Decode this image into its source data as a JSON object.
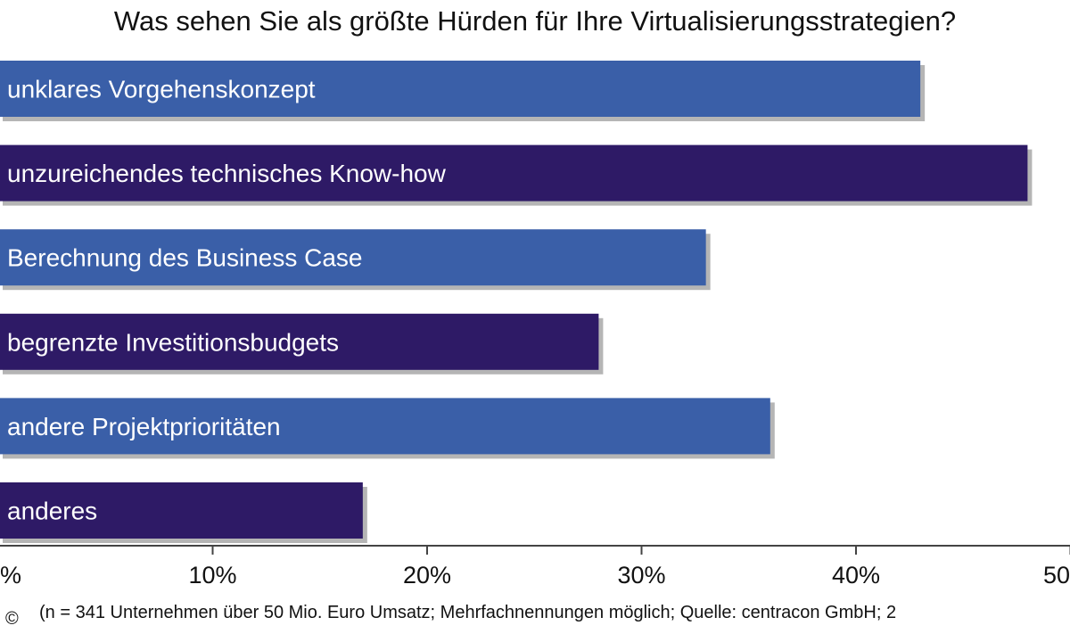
{
  "chart_data": {
    "type": "bar",
    "orientation": "horizontal",
    "title": "Was sehen Sie als größte Hürden für Ihre Virtualisierungsstrategien?",
    "categories": [
      "unklares Vorgehenskonzept",
      "unzureichendes technisches Know-how",
      "Berechnung des Business Case",
      "begrenzte Investitionsbudgets",
      "andere Projektprioritäten",
      "anderes"
    ],
    "values": [
      43,
      48,
      33,
      28,
      36,
      17
    ],
    "bar_colors": [
      "#3a5fa8",
      "#2e1a66",
      "#3a5fa8",
      "#2e1a66",
      "#3a5fa8",
      "#2e1a66"
    ],
    "x_ticks": [
      0,
      10,
      20,
      30,
      40,
      50
    ],
    "x_tick_labels": [
      "%",
      "10%",
      "20%",
      "30%",
      "40%",
      "50"
    ],
    "xlim": [
      0,
      50
    ],
    "xlabel": "",
    "ylabel": "",
    "grid": false,
    "legend": "none"
  },
  "footnote": "(n = 341 Unternehmen über 50 Mio. Euro Umsatz; Mehrfachnennungen möglich; Quelle: centracon GmbH; 2",
  "copyright_symbol": "©",
  "colors": {
    "label_text": "#ffffff",
    "axis": "#444444",
    "shadow": "#b5b5b5"
  }
}
